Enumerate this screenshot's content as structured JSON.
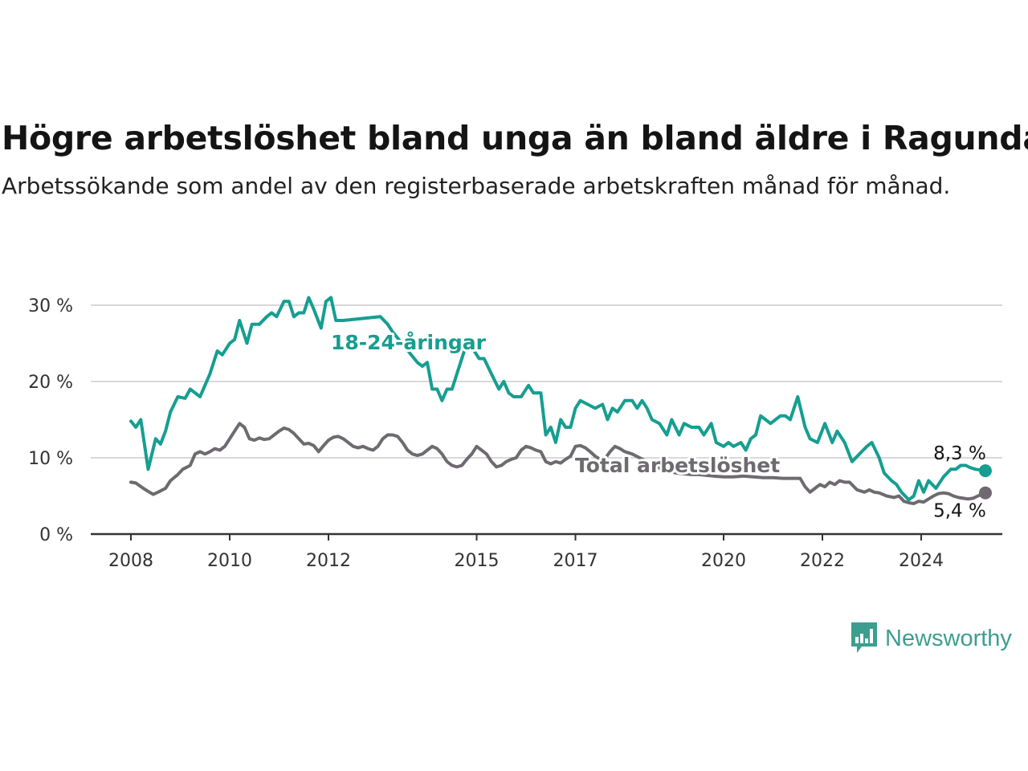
{
  "title": "Högre arbetslöshet bland unga än bland äldre i Ragunda",
  "subtitle": "Arbetssökande som andel av den registerbaserade arbetskraften månad för månad.",
  "brand": {
    "name": "Newsworthy",
    "color": "#3c9e8f",
    "icon": "bar-chart-speech-bubble-icon"
  },
  "chart_data": {
    "type": "line",
    "ylim": [
      0,
      31.5
    ],
    "y_ticks": [
      {
        "v": 0,
        "label": "0 %"
      },
      {
        "v": 10,
        "label": "10 %"
      },
      {
        "v": 20,
        "label": "20 %"
      },
      {
        "v": 30,
        "label": "30 %"
      }
    ],
    "x_ticks": [
      {
        "v": 2008.0,
        "label": "2008"
      },
      {
        "v": 2010.0,
        "label": "2010"
      },
      {
        "v": 2012.0,
        "label": "2012"
      },
      {
        "v": 2015.0,
        "label": "2015"
      },
      {
        "v": 2017.0,
        "label": "2017"
      },
      {
        "v": 2020.0,
        "label": "2020"
      },
      {
        "v": 2022.0,
        "label": "2022"
      },
      {
        "v": 2024.0,
        "label": "2024"
      }
    ],
    "grid": true,
    "series": [
      {
        "name": "18-24-åringar",
        "color": "#169e91",
        "end_label": "8,3 %",
        "points": [
          [
            2008.0,
            14.8
          ],
          [
            2008.1,
            14.0
          ],
          [
            2008.2,
            15.0
          ],
          [
            2008.35,
            8.5
          ],
          [
            2008.5,
            12.5
          ],
          [
            2008.6,
            11.8
          ],
          [
            2008.7,
            13.5
          ],
          [
            2008.8,
            16.0
          ],
          [
            2008.95,
            18.0
          ],
          [
            2009.1,
            17.8
          ],
          [
            2009.2,
            19.0
          ],
          [
            2009.4,
            18.0
          ],
          [
            2009.6,
            21.0
          ],
          [
            2009.75,
            24.0
          ],
          [
            2009.85,
            23.5
          ],
          [
            2010.0,
            25.0
          ],
          [
            2010.1,
            25.5
          ],
          [
            2010.2,
            28.0
          ],
          [
            2010.35,
            25.0
          ],
          [
            2010.45,
            27.5
          ],
          [
            2010.6,
            27.5
          ],
          [
            2010.75,
            28.5
          ],
          [
            2010.85,
            29.0
          ],
          [
            2010.95,
            28.5
          ],
          [
            2011.1,
            30.5
          ],
          [
            2011.2,
            30.5
          ],
          [
            2011.3,
            28.5
          ],
          [
            2011.4,
            29.0
          ],
          [
            2011.5,
            29.0
          ],
          [
            2011.6,
            31.0
          ],
          [
            2011.7,
            29.5
          ],
          [
            2011.85,
            27.0
          ],
          [
            2011.95,
            30.5
          ],
          [
            2012.05,
            31.0
          ],
          [
            2012.15,
            28.0
          ],
          [
            2012.3,
            28.0
          ],
          [
            2013.05,
            28.5
          ],
          [
            2013.2,
            27.5
          ],
          [
            2013.3,
            26.5
          ],
          [
            2013.8,
            22.5
          ],
          [
            2013.9,
            22.0
          ],
          [
            2014.0,
            22.5
          ],
          [
            2014.1,
            19.0
          ],
          [
            2014.2,
            19.0
          ],
          [
            2014.3,
            17.5
          ],
          [
            2014.4,
            19.0
          ],
          [
            2014.5,
            19.0
          ],
          [
            2014.6,
            21.0
          ],
          [
            2014.75,
            24.0
          ],
          [
            2014.9,
            24.5
          ],
          [
            2015.05,
            23.0
          ],
          [
            2015.15,
            23.0
          ],
          [
            2015.3,
            21.0
          ],
          [
            2015.45,
            19.0
          ],
          [
            2015.55,
            20.0
          ],
          [
            2015.65,
            18.5
          ],
          [
            2015.75,
            18.0
          ],
          [
            2015.9,
            18.0
          ],
          [
            2016.05,
            19.5
          ],
          [
            2016.15,
            18.5
          ],
          [
            2016.3,
            18.5
          ],
          [
            2016.4,
            13.0
          ],
          [
            2016.5,
            14.0
          ],
          [
            2016.6,
            12.0
          ],
          [
            2016.7,
            15.0
          ],
          [
            2016.8,
            14.0
          ],
          [
            2016.9,
            14.0
          ],
          [
            2017.0,
            16.5
          ],
          [
            2017.1,
            17.5
          ],
          [
            2017.25,
            17.0
          ],
          [
            2017.4,
            16.5
          ],
          [
            2017.55,
            17.0
          ],
          [
            2017.65,
            15.0
          ],
          [
            2017.75,
            16.5
          ],
          [
            2017.85,
            16.0
          ],
          [
            2018.0,
            17.5
          ],
          [
            2018.15,
            17.5
          ],
          [
            2018.25,
            16.5
          ],
          [
            2018.35,
            17.5
          ],
          [
            2018.45,
            16.5
          ],
          [
            2018.55,
            15.0
          ],
          [
            2018.7,
            14.5
          ],
          [
            2018.85,
            13.0
          ],
          [
            2018.95,
            15.0
          ],
          [
            2019.1,
            13.0
          ],
          [
            2019.2,
            14.5
          ],
          [
            2019.35,
            14.0
          ],
          [
            2019.5,
            14.0
          ],
          [
            2019.6,
            13.0
          ],
          [
            2019.75,
            14.5
          ],
          [
            2019.85,
            12.0
          ],
          [
            2020.0,
            11.5
          ],
          [
            2020.1,
            12.0
          ],
          [
            2020.2,
            11.5
          ],
          [
            2020.35,
            12.0
          ],
          [
            2020.45,
            11.0
          ],
          [
            2020.55,
            12.5
          ],
          [
            2020.65,
            13.0
          ],
          [
            2020.75,
            15.5
          ],
          [
            2020.85,
            15.0
          ],
          [
            2020.95,
            14.5
          ],
          [
            2021.05,
            15.0
          ],
          [
            2021.15,
            15.5
          ],
          [
            2021.25,
            15.5
          ],
          [
            2021.35,
            15.0
          ],
          [
            2021.5,
            18.0
          ],
          [
            2021.65,
            14.0
          ],
          [
            2021.75,
            12.5
          ],
          [
            2021.9,
            12.0
          ],
          [
            2022.05,
            14.5
          ],
          [
            2022.2,
            12.0
          ],
          [
            2022.3,
            13.5
          ],
          [
            2022.45,
            12.0
          ],
          [
            2022.6,
            9.5
          ],
          [
            2022.75,
            10.5
          ],
          [
            2022.9,
            11.5
          ],
          [
            2023.0,
            12.0
          ],
          [
            2023.15,
            10.0
          ],
          [
            2023.25,
            8.0
          ],
          [
            2023.4,
            7.0
          ],
          [
            2023.5,
            6.5
          ],
          [
            2023.6,
            5.5
          ],
          [
            2023.75,
            4.5
          ],
          [
            2023.85,
            5.0
          ],
          [
            2023.95,
            7.0
          ],
          [
            2024.05,
            5.5
          ],
          [
            2024.15,
            7.0
          ],
          [
            2024.3,
            6.0
          ],
          [
            2024.45,
            7.5
          ],
          [
            2024.6,
            8.5
          ],
          [
            2024.7,
            8.5
          ],
          [
            2024.8,
            9.0
          ],
          [
            2024.9,
            9.0
          ],
          [
            2025.0,
            8.7
          ],
          [
            2025.1,
            8.5
          ],
          [
            2025.2,
            8.4
          ],
          [
            2025.3,
            8.3
          ]
        ]
      },
      {
        "name": "Total arbetslöshet",
        "color": "#6e6a70",
        "end_label": "5,4 %",
        "points": [
          [
            2008.0,
            6.8
          ],
          [
            2008.1,
            6.7
          ],
          [
            2008.25,
            6.0
          ],
          [
            2008.35,
            5.6
          ],
          [
            2008.45,
            5.2
          ],
          [
            2008.55,
            5.5
          ],
          [
            2008.7,
            6.0
          ],
          [
            2008.8,
            7.0
          ],
          [
            2008.95,
            7.8
          ],
          [
            2009.05,
            8.5
          ],
          [
            2009.2,
            9.0
          ],
          [
            2009.3,
            10.5
          ],
          [
            2009.4,
            10.8
          ],
          [
            2009.5,
            10.5
          ],
          [
            2009.6,
            10.8
          ],
          [
            2009.7,
            11.2
          ],
          [
            2009.8,
            11.0
          ],
          [
            2009.9,
            11.5
          ],
          [
            2010.0,
            12.5
          ],
          [
            2010.1,
            13.5
          ],
          [
            2010.2,
            14.5
          ],
          [
            2010.3,
            14.0
          ],
          [
            2010.4,
            12.5
          ],
          [
            2010.5,
            12.3
          ],
          [
            2010.6,
            12.6
          ],
          [
            2010.7,
            12.4
          ],
          [
            2010.8,
            12.5
          ],
          [
            2010.9,
            13.0
          ],
          [
            2011.0,
            13.5
          ],
          [
            2011.1,
            13.9
          ],
          [
            2011.2,
            13.7
          ],
          [
            2011.3,
            13.2
          ],
          [
            2011.4,
            12.5
          ],
          [
            2011.5,
            11.8
          ],
          [
            2011.6,
            11.9
          ],
          [
            2011.7,
            11.6
          ],
          [
            2011.8,
            10.8
          ],
          [
            2011.9,
            11.6
          ],
          [
            2012.0,
            12.3
          ],
          [
            2012.1,
            12.7
          ],
          [
            2012.2,
            12.8
          ],
          [
            2012.3,
            12.5
          ],
          [
            2012.4,
            12.0
          ],
          [
            2012.5,
            11.5
          ],
          [
            2012.6,
            11.3
          ],
          [
            2012.7,
            11.5
          ],
          [
            2012.8,
            11.2
          ],
          [
            2012.9,
            11.0
          ],
          [
            2013.0,
            11.5
          ],
          [
            2013.1,
            12.5
          ],
          [
            2013.2,
            13.0
          ],
          [
            2013.3,
            13.0
          ],
          [
            2013.4,
            12.8
          ],
          [
            2013.5,
            12.0
          ],
          [
            2013.6,
            11.0
          ],
          [
            2013.7,
            10.5
          ],
          [
            2013.8,
            10.3
          ],
          [
            2013.9,
            10.5
          ],
          [
            2014.0,
            11.0
          ],
          [
            2014.1,
            11.5
          ],
          [
            2014.2,
            11.2
          ],
          [
            2014.3,
            10.5
          ],
          [
            2014.4,
            9.5
          ],
          [
            2014.5,
            9.0
          ],
          [
            2014.6,
            8.8
          ],
          [
            2014.7,
            9.0
          ],
          [
            2014.8,
            9.8
          ],
          [
            2014.9,
            10.5
          ],
          [
            2015.0,
            11.5
          ],
          [
            2015.1,
            11.0
          ],
          [
            2015.2,
            10.5
          ],
          [
            2015.3,
            9.5
          ],
          [
            2015.4,
            8.8
          ],
          [
            2015.5,
            9.0
          ],
          [
            2015.6,
            9.5
          ],
          [
            2015.7,
            9.8
          ],
          [
            2015.8,
            10.0
          ],
          [
            2015.9,
            11.0
          ],
          [
            2016.0,
            11.5
          ],
          [
            2016.1,
            11.3
          ],
          [
            2016.2,
            11.0
          ],
          [
            2016.3,
            10.8
          ],
          [
            2016.4,
            9.5
          ],
          [
            2016.5,
            9.2
          ],
          [
            2016.6,
            9.5
          ],
          [
            2016.7,
            9.3
          ],
          [
            2016.8,
            9.8
          ],
          [
            2016.9,
            10.2
          ],
          [
            2017.0,
            11.5
          ],
          [
            2017.1,
            11.6
          ],
          [
            2017.2,
            11.3
          ],
          [
            2017.3,
            10.8
          ],
          [
            2017.4,
            10.2
          ],
          [
            2017.5,
            9.8
          ],
          [
            2017.6,
            9.9
          ],
          [
            2017.7,
            10.8
          ],
          [
            2017.8,
            11.5
          ],
          [
            2017.9,
            11.2
          ],
          [
            2018.0,
            10.8
          ],
          [
            2018.15,
            10.5
          ],
          [
            2018.3,
            10.0
          ],
          [
            2018.45,
            9.5
          ],
          [
            2018.6,
            9.0
          ],
          [
            2018.75,
            8.5
          ],
          [
            2018.9,
            8.2
          ],
          [
            2019.05,
            8.0
          ],
          [
            2019.2,
            7.9
          ],
          [
            2019.35,
            7.8
          ],
          [
            2019.5,
            7.8
          ],
          [
            2019.65,
            7.7
          ],
          [
            2019.8,
            7.6
          ],
          [
            2020.0,
            7.5
          ],
          [
            2020.2,
            7.5
          ],
          [
            2020.4,
            7.6
          ],
          [
            2020.6,
            7.5
          ],
          [
            2020.8,
            7.4
          ],
          [
            2021.0,
            7.4
          ],
          [
            2021.2,
            7.3
          ],
          [
            2021.4,
            7.3
          ],
          [
            2021.55,
            7.3
          ],
          [
            2021.65,
            6.2
          ],
          [
            2021.75,
            5.5
          ],
          [
            2021.85,
            6.0
          ],
          [
            2021.95,
            6.5
          ],
          [
            2022.05,
            6.2
          ],
          [
            2022.15,
            6.8
          ],
          [
            2022.25,
            6.5
          ],
          [
            2022.35,
            7.0
          ],
          [
            2022.45,
            6.8
          ],
          [
            2022.55,
            6.8
          ],
          [
            2022.7,
            5.8
          ],
          [
            2022.85,
            5.5
          ],
          [
            2022.95,
            5.8
          ],
          [
            2023.05,
            5.5
          ],
          [
            2023.15,
            5.4
          ],
          [
            2023.3,
            5.0
          ],
          [
            2023.45,
            4.8
          ],
          [
            2023.55,
            5.0
          ],
          [
            2023.65,
            4.3
          ],
          [
            2023.75,
            4.1
          ],
          [
            2023.85,
            4.0
          ],
          [
            2023.95,
            4.3
          ],
          [
            2024.05,
            4.2
          ],
          [
            2024.15,
            4.6
          ],
          [
            2024.25,
            5.0
          ],
          [
            2024.35,
            5.3
          ],
          [
            2024.45,
            5.4
          ],
          [
            2024.55,
            5.3
          ],
          [
            2024.65,
            5.0
          ],
          [
            2024.75,
            4.8
          ],
          [
            2024.85,
            4.7
          ],
          [
            2024.95,
            4.6
          ],
          [
            2025.05,
            4.7
          ],
          [
            2025.15,
            5.0
          ],
          [
            2025.3,
            5.4
          ]
        ]
      }
    ]
  }
}
